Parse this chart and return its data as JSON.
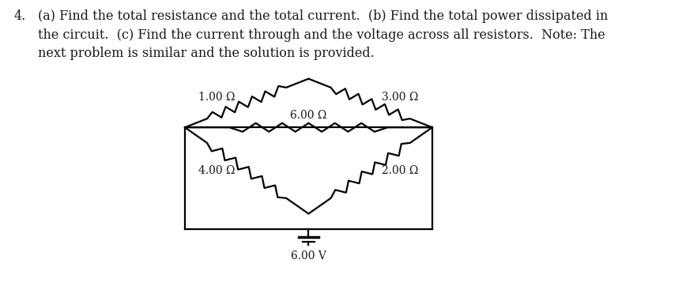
{
  "title_number": "4.",
  "title_text": "(a) Find the total resistance and the total current.  (b) Find the total power dissipated in\nthe circuit.  (c) Find the current through and the voltage across all resistors.  Note: The\nnext problem is similar and the solution is provided.",
  "resistors": {
    "R1": "1.00 Ω",
    "R2": "3.00 Ω",
    "R3": "6.00 Ω",
    "R4": "4.00 Ω",
    "R5": "2.00 Ω"
  },
  "voltage": "6.00 V",
  "line_color": "#000000",
  "background_color": "#ffffff",
  "text_color": "#1a1a1a",
  "font_size": 10.0,
  "title_font_size": 11.5
}
